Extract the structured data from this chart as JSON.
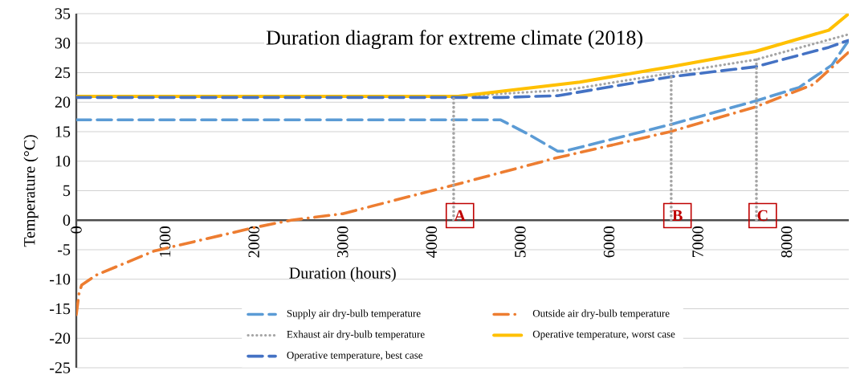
{
  "chart_data": {
    "type": "line",
    "title": "Duration diagram for extreme climate (2018)",
    "xlabel": "Duration (hours)",
    "ylabel": "Temperature (°C)",
    "xlim": [
      0,
      8700
    ],
    "ylim": [
      -25,
      35
    ],
    "xticks": [
      0,
      1000,
      2000,
      3000,
      4000,
      5000,
      6000,
      7000,
      8000
    ],
    "yticks": [
      -25,
      -20,
      -15,
      -10,
      -5,
      0,
      5,
      10,
      15,
      20,
      25,
      30,
      35
    ],
    "grid": "y",
    "legend": "bottom",
    "series": [
      {
        "name": "Supply air dry-bulb temperature",
        "color": "#5b9bd5",
        "line_style": "dashed",
        "x": [
          0,
          4780,
          5100,
          5420,
          5500,
          6690,
          7650,
          8140,
          8510,
          8700
        ],
        "values": [
          17,
          17,
          14.5,
          11.7,
          11.7,
          16.2,
          20.2,
          22.5,
          26.3,
          30.5
        ]
      },
      {
        "name": "Outside air dry-bulb temperature",
        "color": "#ed7d31",
        "line_style": "dashdot",
        "x": [
          0,
          30,
          60,
          224,
          880,
          2020,
          2420,
          3000,
          4340,
          5390,
          6690,
          7650,
          8300,
          8700
        ],
        "values": [
          -16,
          -12.5,
          -11,
          -9.3,
          -5.2,
          -1.2,
          0,
          1.1,
          6.3,
          10.5,
          15,
          19.2,
          23,
          28.5
        ]
      },
      {
        "name": "Exhaust air  dry-bulb temperature",
        "color": "#a5a5a5",
        "line_style": "dotted",
        "x": [
          0,
          4300,
          5540,
          6690,
          7650,
          8700
        ],
        "values": [
          21,
          21,
          22.1,
          24.9,
          27.2,
          31.5
        ]
      },
      {
        "name": "Operative temperature, worst case",
        "color": "#ffc000",
        "line_style": "solid",
        "x": [
          0,
          4300,
          5670,
          6690,
          7650,
          8475,
          8700
        ],
        "values": [
          21,
          21,
          23.4,
          26,
          28.6,
          32.2,
          35
        ]
      },
      {
        "name": "Operative temperature, best case",
        "color": "#4472c4",
        "line_style": "dashed",
        "x": [
          0,
          4800,
          5420,
          6690,
          7650,
          8475,
          8700
        ],
        "values": [
          20.8,
          20.8,
          21.1,
          24.3,
          26,
          29.3,
          30.5
        ]
      }
    ],
    "ref_lines": [
      {
        "axis": "x",
        "value": 4250,
        "label": "A",
        "color": "#a5a5a5",
        "line_style": "dotted"
      },
      {
        "axis": "x",
        "value": 6700,
        "label": "B",
        "color": "#a5a5a5",
        "line_style": "dotted"
      },
      {
        "axis": "x",
        "value": 7660,
        "label": "C",
        "color": "#a5a5a5",
        "line_style": "dotted"
      }
    ]
  }
}
